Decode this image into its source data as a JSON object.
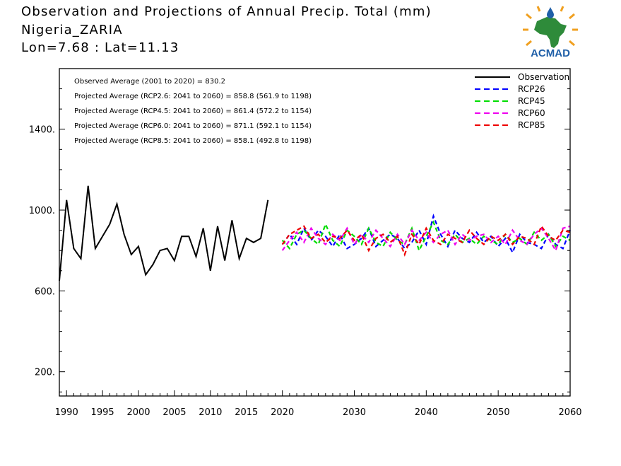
{
  "header": {
    "line1": "Observation and Projections of Annual Precip. Total (mm)",
    "line2": "Nigeria_ZARIA",
    "line3": "Lon=7.68 : Lat=11.13"
  },
  "logo": {
    "text": "ACMAD",
    "colors": {
      "africa": "#2e8b3a",
      "sun": "#f0a020",
      "text": "#1f5fa8",
      "drop": "#1f5fa8"
    }
  },
  "chart_data": {
    "type": "line",
    "xlim": [
      1989,
      2060
    ],
    "ylim": [
      80,
      1700
    ],
    "x_ticks": [
      {
        "value": 1990,
        "label": "1990"
      },
      {
        "value": 1995,
        "label": "1995"
      },
      {
        "value": 2000,
        "label": "2000"
      },
      {
        "value": 2005,
        "label": "2005"
      },
      {
        "value": 2010,
        "label": "2010"
      },
      {
        "value": 2015,
        "label": "2015"
      },
      {
        "value": 2020,
        "label": "2020"
      },
      {
        "value": 2030,
        "label": "2030"
      },
      {
        "value": 2040,
        "label": "2040"
      },
      {
        "value": 2050,
        "label": "2050"
      },
      {
        "value": 2060,
        "label": "2060"
      }
    ],
    "y_ticks": [
      {
        "value": 200,
        "label": "200."
      },
      {
        "value": 600,
        "label": "600."
      },
      {
        "value": 1000,
        "label": "1000."
      },
      {
        "value": 1400,
        "label": "1400."
      }
    ],
    "annotations": [
      "Observed Average (2001 to 2020) = 830.2",
      "Projected Average (RCP2.6: 2041 to 2060) = 858.8 (561.9 to 1198)",
      "Projected Average (RCP4.5: 2041 to 2060) = 861.4 (572.2 to 1154)",
      "Projected Average (RCP6.0: 2041 to 2060) = 871.1 (592.1 to 1154)",
      "Projected Average (RCP8.5: 2041 to 2060) = 858.1 (492.8 to 1198)"
    ],
    "legend_position": "top-right",
    "series": [
      {
        "name": "Observation",
        "color": "#000000",
        "style": "solid",
        "x": [
          1989,
          1990,
          1991,
          1992,
          1993,
          1994,
          1995,
          1996,
          1997,
          1998,
          1999,
          2000,
          2001,
          2002,
          2003,
          2004,
          2005,
          2006,
          2007,
          2008,
          2009,
          2010,
          2011,
          2012,
          2013,
          2014,
          2015,
          2016,
          2017,
          2018,
          2019,
          2020
        ],
        "y": [
          650,
          1050,
          810,
          760,
          1120,
          810,
          870,
          930,
          1030,
          880,
          780,
          820,
          680,
          730,
          800,
          810,
          750,
          870,
          870,
          770,
          910,
          700,
          920,
          750,
          950,
          760,
          860,
          840,
          860,
          1050,
          null,
          null
        ]
      },
      {
        "name": "RCP26",
        "color": "#0000ff",
        "style": "dashed",
        "x": [
          2020,
          2021,
          2022,
          2023,
          2024,
          2025,
          2026,
          2027,
          2028,
          2029,
          2030,
          2031,
          2032,
          2033,
          2034,
          2035,
          2036,
          2037,
          2038,
          2039,
          2040,
          2041,
          2042,
          2043,
          2044,
          2045,
          2046,
          2047,
          2048,
          2049,
          2050,
          2051,
          2052,
          2053,
          2054,
          2055,
          2056,
          2057,
          2058,
          2059,
          2060
        ],
        "y": [
          830,
          880,
          830,
          910,
          850,
          900,
          870,
          820,
          880,
          810,
          830,
          860,
          910,
          820,
          850,
          880,
          860,
          810,
          840,
          900,
          830,
          970,
          880,
          820,
          900,
          860,
          840,
          890,
          840,
          870,
          820,
          860,
          790,
          880,
          840,
          830,
          810,
          880,
          830,
          810,
          900
        ]
      },
      {
        "name": "RCP45",
        "color": "#00dd00",
        "style": "dashed",
        "x": [
          2020,
          2021,
          2022,
          2023,
          2024,
          2025,
          2026,
          2027,
          2028,
          2029,
          2030,
          2031,
          2032,
          2033,
          2034,
          2035,
          2036,
          2037,
          2038,
          2039,
          2040,
          2041,
          2042,
          2043,
          2044,
          2045,
          2046,
          2047,
          2048,
          2049,
          2050,
          2051,
          2052,
          2053,
          2054,
          2055,
          2056,
          2057,
          2058,
          2059,
          2060
        ],
        "y": [
          850,
          810,
          880,
          900,
          860,
          830,
          930,
          850,
          820,
          900,
          870,
          830,
          910,
          840,
          820,
          890,
          850,
          830,
          910,
          800,
          870,
          940,
          850,
          830,
          880,
          840,
          860,
          830,
          870,
          850,
          830,
          880,
          840,
          860,
          830,
          890,
          850,
          880,
          820,
          870,
          850
        ]
      },
      {
        "name": "RCP60",
        "color": "#ee00ee",
        "style": "dashed",
        "x": [
          2020,
          2021,
          2022,
          2023,
          2024,
          2025,
          2026,
          2027,
          2028,
          2029,
          2030,
          2031,
          2032,
          2033,
          2034,
          2035,
          2036,
          2037,
          2038,
          2039,
          2040,
          2041,
          2042,
          2043,
          2044,
          2045,
          2046,
          2047,
          2048,
          2049,
          2050,
          2051,
          2052,
          2053,
          2054,
          2055,
          2056,
          2057,
          2058,
          2059,
          2060
        ],
        "y": [
          800,
          850,
          890,
          840,
          910,
          860,
          830,
          880,
          850,
          910,
          830,
          880,
          840,
          900,
          860,
          820,
          880,
          830,
          900,
          850,
          890,
          840,
          880,
          900,
          830,
          880,
          850,
          870,
          880,
          840,
          870,
          830,
          900,
          850,
          830,
          880,
          910,
          860,
          800,
          910,
          920
        ]
      },
      {
        "name": "RCP85",
        "color": "#ee0000",
        "style": "dashed",
        "x": [
          2020,
          2021,
          2022,
          2023,
          2024,
          2025,
          2026,
          2027,
          2028,
          2029,
          2030,
          2031,
          2032,
          2033,
          2034,
          2035,
          2036,
          2037,
          2038,
          2039,
          2040,
          2041,
          2042,
          2043,
          2044,
          2045,
          2046,
          2047,
          2048,
          2049,
          2050,
          2051,
          2052,
          2053,
          2054,
          2055,
          2056,
          2057,
          2058,
          2059,
          2060
        ],
        "y": [
          830,
          880,
          900,
          920,
          860,
          880,
          840,
          870,
          860,
          900,
          850,
          880,
          800,
          860,
          880,
          840,
          870,
          780,
          880,
          830,
          910,
          850,
          830,
          880,
          860,
          840,
          900,
          860,
          830,
          870,
          850,
          880,
          830,
          870,
          860,
          830,
          920,
          870,
          850,
          900,
          890
        ]
      }
    ]
  }
}
